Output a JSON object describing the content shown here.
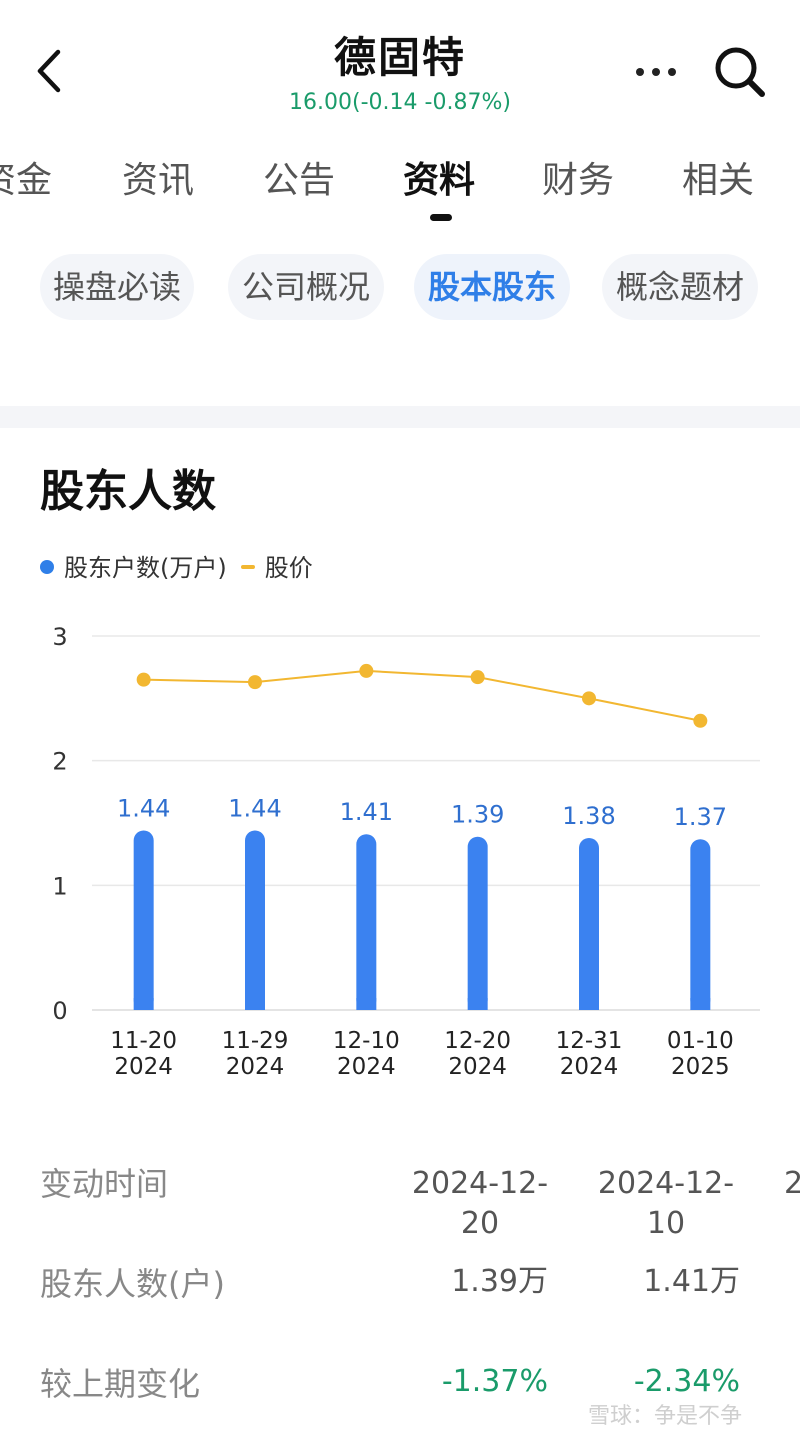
{
  "header": {
    "title": "德固特",
    "quote": "16.00(-0.14 -0.87%)",
    "back_icon": "chevron-left-icon",
    "more_icon": "more-horizontal-icon",
    "search_icon": "search-icon"
  },
  "tabs": [
    "资金",
    "资讯",
    "公告",
    "资料",
    "财务",
    "相关"
  ],
  "active_tab": "资料",
  "chips": [
    "操盘必读",
    "公司概况",
    "股本股东",
    "概念题材"
  ],
  "active_chip": "股本股东",
  "section_title": "股东人数",
  "legend": {
    "bar_series": "股东户数(万户)",
    "line_series": "股价"
  },
  "chart_data": {
    "type": "bar",
    "categories": [
      [
        "11-20",
        "2024"
      ],
      [
        "11-29",
        "2024"
      ],
      [
        "12-10",
        "2024"
      ],
      [
        "12-20",
        "2024"
      ],
      [
        "12-31",
        "2024"
      ],
      [
        "01-10",
        "2025"
      ]
    ],
    "series": [
      {
        "name": "股东户数(万户)",
        "type": "bar",
        "values": [
          1.44,
          1.44,
          1.41,
          1.39,
          1.38,
          1.37
        ],
        "labels": [
          "1.44",
          "1.44",
          "1.41",
          "1.39",
          "1.38",
          "1.37"
        ],
        "color": "#3b82f0"
      },
      {
        "name": "股价",
        "type": "line",
        "values": [
          2.65,
          2.63,
          2.72,
          2.67,
          2.5,
          2.32
        ],
        "color": "#f2b731"
      }
    ],
    "y_ticks": [
      "0",
      "1",
      "2",
      "3"
    ],
    "ylim": [
      0,
      3
    ],
    "grid": true,
    "legend": "top-left"
  },
  "table": {
    "labels": [
      "变动时间",
      "股东人数(户)",
      "较上期变化"
    ],
    "columns": [
      {
        "date": "2024-12-20",
        "holders": "1.39万",
        "change": "-1.37%"
      },
      {
        "date": "2024-12-10",
        "holders": "1.41万",
        "change": "-2.34%"
      },
      {
        "date": "2",
        "holders": "",
        "change": ""
      }
    ]
  },
  "watermark": "雪球：争是不争",
  "colors": {
    "accent": "#2f7fe8",
    "up_green": "#1a9b6a",
    "bar_blue": "#3b82f0",
    "line_gold": "#f2b731"
  }
}
